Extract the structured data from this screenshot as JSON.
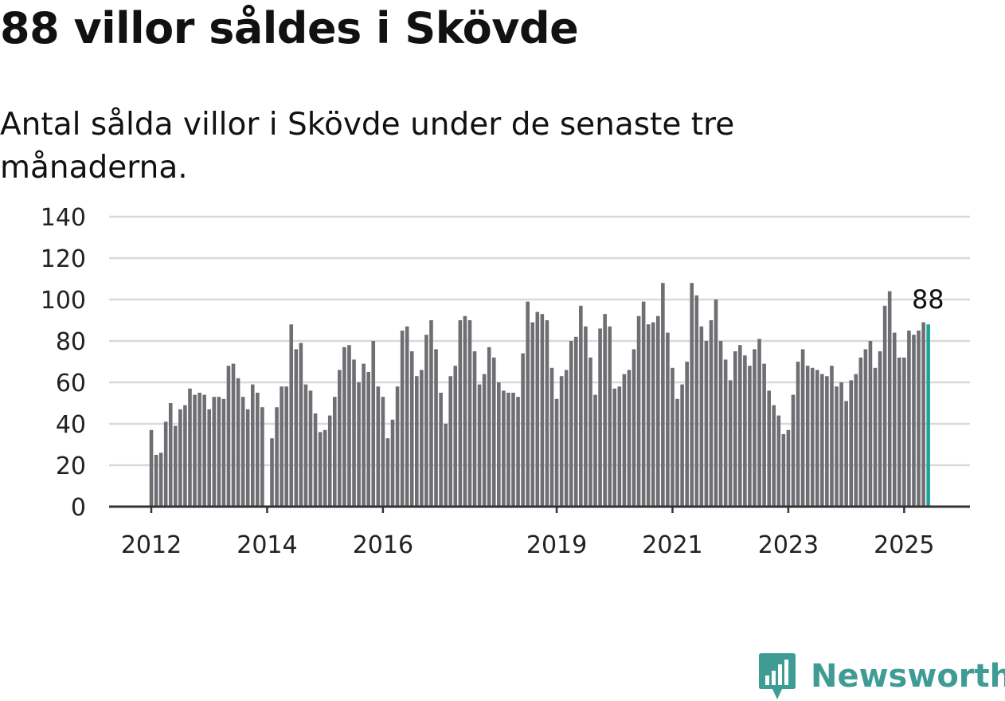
{
  "title": "88 villor såldes i Skövde",
  "subtitle": "Antal sålda villor i Skövde under de senaste tre månaderna.",
  "brand": {
    "name": "Newsworthy",
    "icon": "newsworthy-logo-icon",
    "color": "#3f9c94"
  },
  "chart_data": {
    "type": "bar",
    "title": "88 villor såldes i Skövde",
    "subtitle": "Antal sålda villor i Skövde under de senaste tre månaderna.",
    "xlabel": "",
    "ylabel": "",
    "ylim": [
      0,
      140
    ],
    "yticks": [
      0,
      20,
      40,
      60,
      80,
      100,
      120,
      140
    ],
    "xtick_labels": [
      "2012",
      "2014",
      "2016",
      "2019",
      "2021",
      "2023",
      "2025"
    ],
    "grid": true,
    "bar_color": "#6e6e73",
    "highlight_color": "#21a39a",
    "highlight_label": "88",
    "start": "2012-01",
    "frequency": "monthly",
    "values": [
      37,
      25,
      26,
      41,
      50,
      39,
      47,
      49,
      57,
      54,
      55,
      54,
      47,
      53,
      53,
      52,
      68,
      69,
      62,
      53,
      47,
      59,
      55,
      48,
      0,
      33,
      48,
      58,
      58,
      88,
      76,
      79,
      59,
      56,
      45,
      36,
      37,
      44,
      53,
      66,
      77,
      78,
      71,
      60,
      69,
      65,
      80,
      58,
      53,
      33,
      42,
      58,
      85,
      87,
      75,
      63,
      66,
      83,
      90,
      76,
      55,
      40,
      63,
      68,
      90,
      92,
      90,
      75,
      59,
      64,
      77,
      72,
      60,
      56,
      55,
      55,
      53,
      74,
      99,
      89,
      94,
      93,
      90,
      67,
      52,
      63,
      66,
      80,
      82,
      97,
      87,
      72,
      54,
      86,
      93,
      87,
      57,
      58,
      64,
      66,
      76,
      92,
      99,
      88,
      89,
      92,
      108,
      84,
      67,
      52,
      59,
      70,
      108,
      102,
      87,
      80,
      90,
      100,
      80,
      71,
      61,
      75,
      78,
      73,
      68,
      76,
      81,
      69,
      56,
      49,
      44,
      35,
      37,
      54,
      70,
      76,
      68,
      67,
      66,
      64,
      63,
      68,
      58,
      60,
      51,
      61,
      64,
      72,
      76,
      80,
      67,
      75,
      97,
      104,
      84,
      72,
      72,
      85,
      83,
      85,
      89,
      88
    ]
  }
}
